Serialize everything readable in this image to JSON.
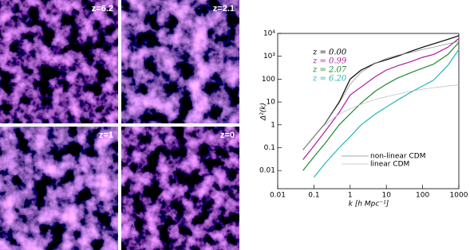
{
  "panels": [
    {
      "label": "z=6.2"
    },
    {
      "label": "z=2.1"
    },
    {
      "label": "z=1"
    },
    {
      "label": "z=0"
    }
  ],
  "chart_data": {
    "type": "line",
    "x_label": "k [h Mpc⁻¹]",
    "y_label": "Δ²(k)",
    "log_x": true,
    "log_y": true,
    "x": [
      0.05,
      0.1,
      0.2,
      0.5,
      1,
      2,
      5,
      10,
      20,
      50,
      100,
      200,
      500,
      1000
    ],
    "series": [
      {
        "name": "z = 0.00",
        "color": "#000000",
        "values": [
          0.08,
          0.3,
          1.1,
          10,
          100,
          250,
          500,
          700,
          1000,
          1700,
          2500,
          3500,
          5500,
          8000
        ]
      },
      {
        "name": "z = 0.99",
        "color": "#b0189e",
        "values": [
          0.03,
          0.12,
          0.5,
          3.5,
          20,
          45,
          130,
          250,
          380,
          600,
          900,
          1200,
          2500,
          6000
        ]
      },
      {
        "name": "z = 2.07",
        "color": "#1f8a2c",
        "values": [
          0.01,
          0.04,
          0.15,
          1,
          3,
          9,
          30,
          60,
          110,
          200,
          300,
          450,
          1200,
          4000
        ]
      },
      {
        "name": "z = 6.20",
        "color": "#25b6b6",
        "values": [
          null,
          0.005,
          0.02,
          0.1,
          0.3,
          1,
          3,
          6,
          12,
          28,
          50,
          90,
          400,
          2000
        ]
      },
      {
        "name": "non-linear CDM",
        "color": "#888888",
        "values": [
          0.08,
          0.3,
          1.1,
          9,
          60,
          200,
          500,
          800,
          1100,
          1500,
          2000,
          2500,
          3500,
          4500
        ]
      },
      {
        "name": "linear CDM",
        "color": "#bbbbbb",
        "values": [
          0.08,
          0.3,
          1,
          3,
          5,
          8,
          13,
          17,
          22,
          30,
          36,
          42,
          50,
          56
        ]
      }
    ],
    "xlim": [
      0.01,
      1000
    ],
    "ylim": [
      0.0016,
      10000
    ],
    "xticks": [
      0.01,
      0.1,
      1,
      10,
      100,
      1000
    ],
    "yticks": [
      0.01,
      0.1,
      1,
      10,
      100,
      {
        "value": 1000,
        "label": "10³"
      },
      {
        "value": 10000,
        "label": "10⁴"
      }
    ]
  }
}
